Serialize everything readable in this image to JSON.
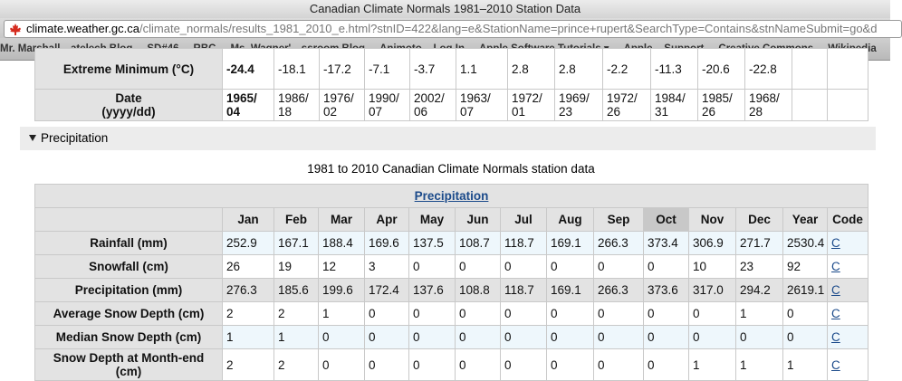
{
  "window": {
    "title": "Canadian Climate Normals 1981–2010 Station Data"
  },
  "address_bar": {
    "domain": "climate.weather.gc.ca",
    "path": "/climate_normals/results_1981_2010_e.html?stnID=422&lang=e&StationName=prince+rupert&SearchType=Contains&stnNameSubmit=go&d"
  },
  "bookmarks": [
    "Mr. Marshall…atelech Blog",
    "SD#46",
    "RBC",
    "Ms. Wagner'…ssroom Blog",
    "Animoto – Log In",
    "Apple Software Tutorials ▾",
    "Apple – Support",
    "Creative Commons",
    "Wikipedia"
  ],
  "temperature_table": {
    "rows": [
      {
        "label": "Extreme Minimum (°C)",
        "cells": [
          "-24.4",
          "-18.1",
          "-17.2",
          "-7.1",
          "-3.7",
          "1.1",
          "2.8",
          "2.8",
          "-2.2",
          "-11.3",
          "-20.6",
          "-22.8"
        ]
      },
      {
        "label": "Date\n(yyyy/dd)",
        "cells": [
          "1965/\n04",
          "1986/\n18",
          "1976/\n02",
          "1990/\n07",
          "2002/\n06",
          "1963/\n07",
          "1972/\n01",
          "1969/\n23",
          "1972/\n26",
          "1984/\n31",
          "1985/\n26",
          "1968/\n28"
        ]
      }
    ]
  },
  "section": {
    "toggle": "Precipitation"
  },
  "caption": "1981 to 2010 Canadian Climate Normals station data",
  "precip_table": {
    "title": "Precipitation",
    "header": [
      "Jan",
      "Feb",
      "Mar",
      "Apr",
      "May",
      "Jun",
      "Jul",
      "Aug",
      "Sep",
      "Oct",
      "Nov",
      "Dec",
      "Year",
      "Code"
    ],
    "rows": [
      {
        "label": "Rainfall (mm)",
        "values": [
          "252.9",
          "167.1",
          "188.4",
          "169.6",
          "137.5",
          "108.7",
          "118.7",
          "169.1",
          "266.3",
          "373.4",
          "306.9",
          "271.7",
          "2530.4"
        ],
        "code": "C"
      },
      {
        "label": "Snowfall (cm)",
        "values": [
          "26",
          "19",
          "12",
          "3",
          "0",
          "0",
          "0",
          "0",
          "0",
          "0",
          "10",
          "23",
          "92"
        ],
        "code": "C"
      },
      {
        "label": "Precipitation (mm)",
        "values": [
          "276.3",
          "185.6",
          "199.6",
          "172.4",
          "137.6",
          "108.8",
          "118.7",
          "169.1",
          "266.3",
          "373.6",
          "317.0",
          "294.2",
          "2619.1"
        ],
        "code": "C"
      },
      {
        "label": "Average Snow Depth (cm)",
        "values": [
          "2",
          "2",
          "1",
          "0",
          "0",
          "0",
          "0",
          "0",
          "0",
          "0",
          "0",
          "1",
          "0"
        ],
        "code": "C"
      },
      {
        "label": "Median Snow Depth (cm)",
        "values": [
          "1",
          "1",
          "0",
          "0",
          "0",
          "0",
          "0",
          "0",
          "0",
          "0",
          "0",
          "0",
          "0"
        ],
        "code": "C"
      },
      {
        "label": "Snow Depth at Month-end (cm)",
        "values": [
          "2",
          "2",
          "0",
          "0",
          "0",
          "0",
          "0",
          "0",
          "0",
          "0",
          "1",
          "1",
          "1"
        ],
        "code": "C"
      }
    ]
  }
}
